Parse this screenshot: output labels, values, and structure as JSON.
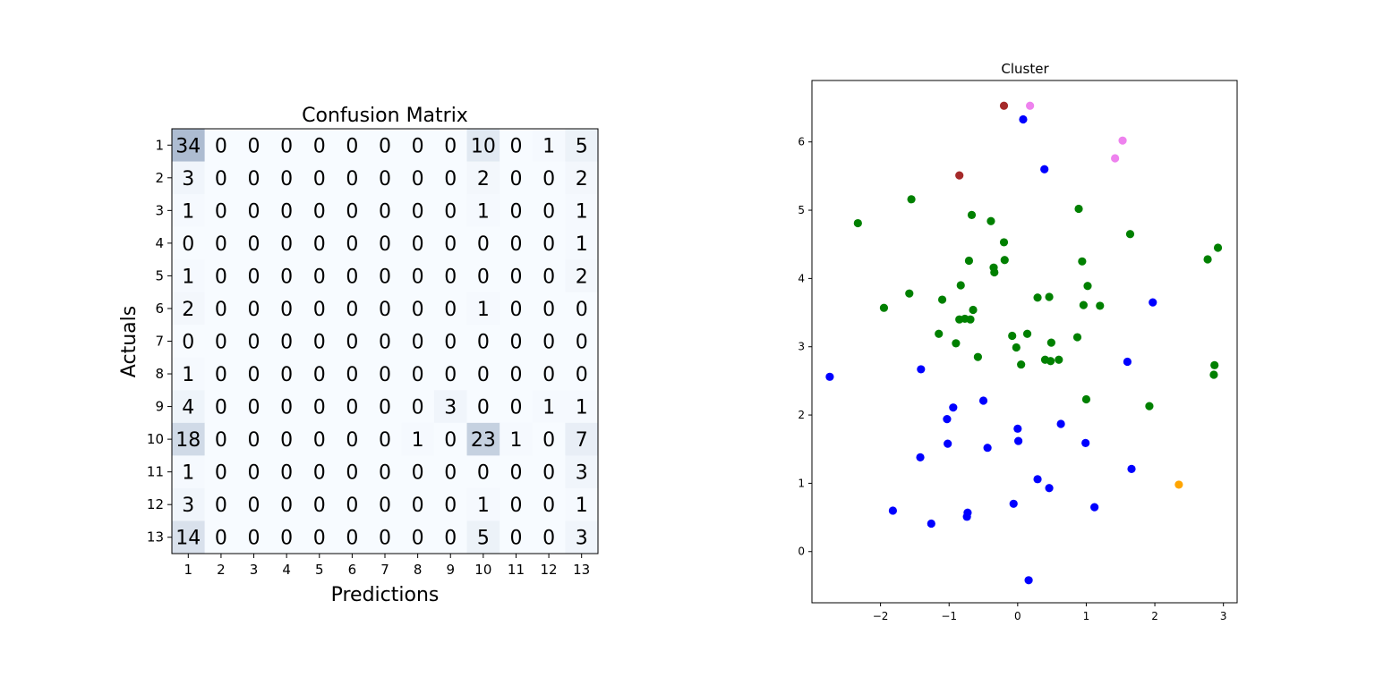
{
  "chart_data": [
    {
      "type": "heatmap",
      "title": "Confusion Matrix",
      "xlabel": "Predictions",
      "ylabel": "Actuals",
      "x_ticks": [
        "1",
        "2",
        "3",
        "4",
        "5",
        "6",
        "7",
        "8",
        "9",
        "10",
        "11",
        "12",
        "13"
      ],
      "y_ticks": [
        "1",
        "2",
        "3",
        "4",
        "5",
        "6",
        "7",
        "8",
        "9",
        "10",
        "11",
        "12",
        "13"
      ],
      "colormap": [
        "#f7fbff",
        "#08306b"
      ],
      "value_range": [
        0,
        110
      ],
      "matrix": [
        [
          34,
          0,
          0,
          0,
          0,
          0,
          0,
          0,
          0,
          10,
          0,
          1,
          5
        ],
        [
          3,
          0,
          0,
          0,
          0,
          0,
          0,
          0,
          0,
          2,
          0,
          0,
          2
        ],
        [
          1,
          0,
          0,
          0,
          0,
          0,
          0,
          0,
          0,
          1,
          0,
          0,
          1
        ],
        [
          0,
          0,
          0,
          0,
          0,
          0,
          0,
          0,
          0,
          0,
          0,
          0,
          1
        ],
        [
          1,
          0,
          0,
          0,
          0,
          0,
          0,
          0,
          0,
          0,
          0,
          0,
          2
        ],
        [
          2,
          0,
          0,
          0,
          0,
          0,
          0,
          0,
          0,
          1,
          0,
          0,
          0
        ],
        [
          0,
          0,
          0,
          0,
          0,
          0,
          0,
          0,
          0,
          0,
          0,
          0,
          0
        ],
        [
          1,
          0,
          0,
          0,
          0,
          0,
          0,
          0,
          0,
          0,
          0,
          0,
          0
        ],
        [
          4,
          0,
          0,
          0,
          0,
          0,
          0,
          0,
          3,
          0,
          0,
          1,
          1
        ],
        [
          18,
          0,
          0,
          0,
          0,
          0,
          0,
          1,
          0,
          23,
          1,
          0,
          7
        ],
        [
          1,
          0,
          0,
          0,
          0,
          0,
          0,
          0,
          0,
          0,
          0,
          0,
          3
        ],
        [
          3,
          0,
          0,
          0,
          0,
          0,
          0,
          0,
          0,
          1,
          0,
          0,
          1
        ],
        [
          14,
          0,
          0,
          0,
          0,
          0,
          0,
          0,
          0,
          5,
          0,
          0,
          3
        ]
      ]
    },
    {
      "type": "scatter",
      "title": "Cluster",
      "xlabel": "",
      "ylabel": "",
      "xlim": [
        -3.0,
        3.2
      ],
      "ylim": [
        -0.75,
        6.9
      ],
      "x_ticks": [
        -2,
        -1,
        0,
        1,
        2,
        3
      ],
      "y_ticks": [
        0,
        1,
        2,
        3,
        4,
        5,
        6
      ],
      "grid": false,
      "series": [
        {
          "color": "#008000",
          "points": [
            [
              -2.33,
              4.81
            ],
            [
              -1.55,
              5.16
            ],
            [
              -1.95,
              3.57
            ],
            [
              -1.58,
              3.78
            ],
            [
              -1.1,
              3.69
            ],
            [
              -1.15,
              3.19
            ],
            [
              -0.9,
              3.05
            ],
            [
              -0.85,
              3.4
            ],
            [
              -0.77,
              3.41
            ],
            [
              -0.69,
              3.4
            ],
            [
              -0.65,
              3.54
            ],
            [
              -0.83,
              3.9
            ],
            [
              -0.71,
              4.26
            ],
            [
              -0.67,
              4.93
            ],
            [
              -0.58,
              2.85
            ],
            [
              -0.39,
              4.84
            ],
            [
              -0.35,
              4.16
            ],
            [
              -0.34,
              4.09
            ],
            [
              -0.2,
              4.53
            ],
            [
              -0.19,
              4.27
            ],
            [
              -0.08,
              3.16
            ],
            [
              -0.02,
              2.99
            ],
            [
              0.05,
              2.74
            ],
            [
              0.14,
              3.19
            ],
            [
              0.29,
              3.72
            ],
            [
              0.4,
              2.81
            ],
            [
              0.46,
              3.73
            ],
            [
              0.48,
              2.79
            ],
            [
              0.49,
              3.06
            ],
            [
              0.6,
              2.81
            ],
            [
              0.89,
              5.02
            ],
            [
              0.87,
              3.14
            ],
            [
              0.94,
              4.25
            ],
            [
              0.96,
              3.61
            ],
            [
              1.0,
              2.23
            ],
            [
              1.02,
              3.89
            ],
            [
              1.2,
              3.6
            ],
            [
              1.64,
              4.65
            ],
            [
              1.92,
              2.13
            ],
            [
              2.77,
              4.28
            ],
            [
              2.92,
              4.45
            ],
            [
              2.87,
              2.73
            ],
            [
              2.86,
              2.59
            ]
          ]
        },
        {
          "color": "#0000ff",
          "points": [
            [
              0.08,
              6.33
            ],
            [
              0.39,
              5.6
            ],
            [
              -2.74,
              2.56
            ],
            [
              -1.41,
              2.67
            ],
            [
              -0.94,
              2.11
            ],
            [
              -1.03,
              1.94
            ],
            [
              -0.5,
              2.21
            ],
            [
              -0.44,
              1.52
            ],
            [
              -1.02,
              1.58
            ],
            [
              -1.42,
              1.38
            ],
            [
              0.0,
              1.8
            ],
            [
              0.01,
              1.62
            ],
            [
              0.63,
              1.87
            ],
            [
              0.99,
              1.59
            ],
            [
              1.6,
              2.78
            ],
            [
              1.97,
              3.65
            ],
            [
              1.66,
              1.21
            ],
            [
              0.29,
              1.06
            ],
            [
              0.46,
              0.93
            ],
            [
              1.12,
              0.65
            ],
            [
              -0.06,
              0.7
            ],
            [
              -0.73,
              0.57
            ],
            [
              -0.74,
              0.51
            ],
            [
              -1.26,
              0.41
            ],
            [
              -1.82,
              0.6
            ],
            [
              0.16,
              -0.42
            ]
          ]
        },
        {
          "color": "#a52a2a",
          "points": [
            [
              -0.2,
              6.53
            ],
            [
              -0.85,
              5.51
            ]
          ]
        },
        {
          "color": "#ee82ee",
          "points": [
            [
              0.18,
              6.53
            ],
            [
              1.53,
              6.02
            ],
            [
              1.42,
              5.76
            ]
          ]
        },
        {
          "color": "#ffa500",
          "points": [
            [
              2.35,
              0.98
            ]
          ]
        }
      ]
    }
  ]
}
